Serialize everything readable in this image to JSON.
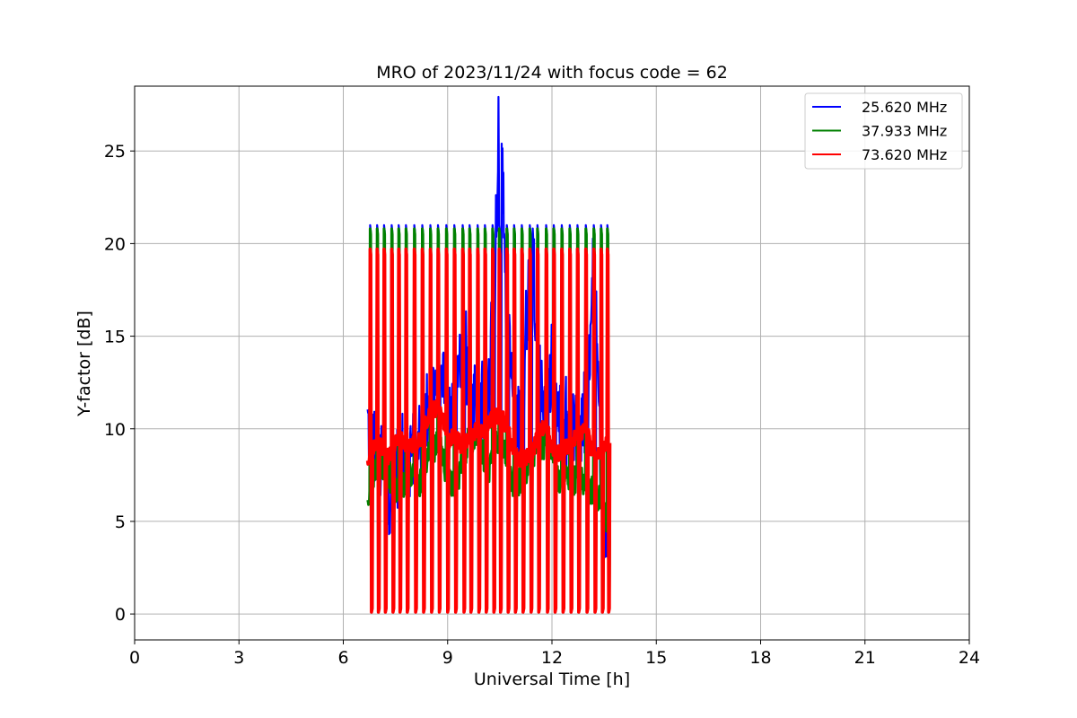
{
  "chart_data": {
    "type": "line",
    "title": "MRO of 2023/11/24 with focus code = 62",
    "xlabel": "Universal Time [h]",
    "ylabel": "Y-factor [dB]",
    "xlim": [
      0,
      24
    ],
    "ylim": [
      -1.4,
      28.5
    ],
    "xticks": [
      "0",
      "3",
      "6",
      "9",
      "12",
      "15",
      "18",
      "21",
      "24"
    ],
    "yticks": [
      "0",
      "5",
      "10",
      "15",
      "20",
      "25"
    ],
    "grid": true,
    "legend_position": "top-right",
    "series": [
      {
        "name": "25.620 MHz",
        "color": "#0000ff",
        "envelope_x": [
          6.7,
          7.0,
          7.3,
          7.6,
          7.9,
          8.2,
          8.5,
          8.8,
          9.0,
          9.2,
          9.4,
          9.6,
          9.8,
          10.0,
          10.2,
          10.35,
          10.5,
          10.6,
          10.7,
          10.9,
          11.1,
          11.3,
          11.45,
          11.6,
          11.8,
          12.0,
          12.2,
          12.4,
          12.6,
          12.8,
          13.0,
          13.2,
          13.4,
          13.6
        ],
        "envelope_y": [
          10.3,
          8.5,
          6.5,
          8.3,
          8.7,
          9.0,
          11.8,
          13.2,
          10.0,
          11.5,
          14.5,
          12.0,
          11.0,
          10.5,
          12.5,
          19.0,
          27.0,
          22.0,
          15.5,
          11.5,
          10.2,
          17.0,
          20.5,
          13.0,
          10.5,
          12.8,
          11.0,
          9.5,
          10.0,
          9.5,
          10.2,
          17.8,
          8.0,
          3.6
        ]
      },
      {
        "name": "37.933 MHz",
        "color": "#008000",
        "envelope_x": [
          6.7,
          7.0,
          7.3,
          7.6,
          7.9,
          8.2,
          8.5,
          8.8,
          9.0,
          9.2,
          9.4,
          9.6,
          9.8,
          10.0,
          10.2,
          10.4,
          10.6,
          10.8,
          11.0,
          11.2,
          11.4,
          11.6,
          11.8,
          12.0,
          12.2,
          12.4,
          12.6,
          12.8,
          13.0,
          13.2,
          13.4,
          13.6
        ],
        "envelope_y": [
          6.0,
          8.5,
          7.5,
          6.5,
          7.8,
          7.0,
          8.8,
          9.2,
          7.2,
          6.8,
          8.0,
          9.4,
          9.6,
          8.8,
          7.5,
          9.5,
          9.0,
          7.2,
          7.0,
          7.5,
          8.5,
          9.0,
          9.2,
          8.5,
          7.0,
          7.5,
          7.2,
          7.5,
          6.5,
          6.8,
          6.0,
          5.0
        ]
      },
      {
        "name": "73.620 MHz",
        "color": "#ff0000",
        "envelope_x": [
          6.7,
          7.0,
          7.3,
          7.6,
          7.9,
          8.2,
          8.5,
          8.8,
          9.0,
          9.2,
          9.4,
          9.6,
          9.8,
          10.0,
          10.2,
          10.4,
          10.6,
          10.8,
          11.0,
          11.2,
          11.4,
          11.6,
          11.8,
          12.0,
          12.2,
          12.4,
          12.6,
          12.8,
          13.0,
          13.2,
          13.4,
          13.6
        ],
        "envelope_y": [
          8.3,
          9.3,
          8.5,
          9.5,
          9.0,
          9.4,
          11.0,
          11.2,
          9.2,
          9.8,
          9.0,
          9.4,
          9.9,
          9.8,
          10.5,
          10.8,
          10.5,
          9.5,
          8.3,
          8.5,
          8.5,
          9.6,
          10.2,
          9.0,
          8.6,
          9.0,
          9.3,
          9.8,
          10.0,
          8.5,
          8.6,
          9.3
        ]
      }
    ],
    "calibration_pulses": {
      "x": [
        6.76,
        6.96,
        7.16,
        7.38,
        7.58,
        7.79,
        8.03,
        8.26,
        8.49,
        8.71,
        8.95,
        9.18,
        9.42,
        9.62,
        9.85,
        10.06,
        10.28,
        10.47,
        10.69,
        10.9,
        11.12,
        11.35,
        11.57,
        11.82,
        12.04,
        12.27,
        12.5,
        12.72,
        12.96,
        13.19,
        13.4,
        13.58
      ],
      "high_values": {
        "25.620 MHz": 21.0,
        "37.933 MHz": 20.8,
        "73.620 MHz": 19.7
      },
      "low_value": 0.1
    }
  }
}
